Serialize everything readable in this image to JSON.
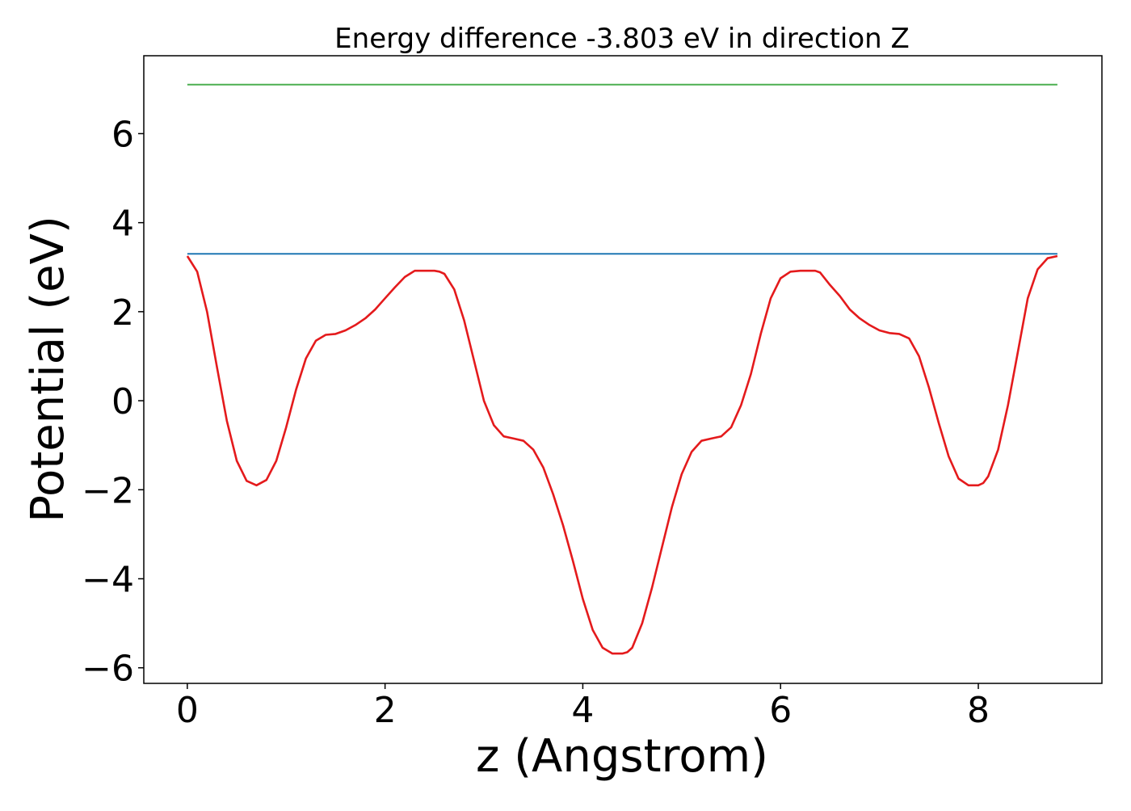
{
  "chart_data": {
    "type": "line",
    "title": "Energy difference -3.803 eV in direction Z",
    "xlabel": "z (Angstrom)",
    "ylabel": "Potential (eV)",
    "xlim": [
      -0.44,
      9.25
    ],
    "ylim": [
      -6.35,
      7.75
    ],
    "xticks": [
      0,
      2,
      4,
      6,
      8
    ],
    "yticks": [
      -6,
      -4,
      -2,
      0,
      2,
      4,
      6
    ],
    "grid": false,
    "legend": "none",
    "series": [
      {
        "color": "#4caf50",
        "x": [
          0,
          8.8
        ],
        "y": [
          7.1,
          7.1
        ]
      },
      {
        "color": "#1f77b4",
        "x": [
          0,
          8.8
        ],
        "y": [
          3.3,
          3.3
        ]
      },
      {
        "color": "#e41a1c",
        "x": [
          0.0,
          0.1,
          0.2,
          0.3,
          0.4,
          0.5,
          0.6,
          0.7,
          0.8,
          0.9,
          1.0,
          1.1,
          1.2,
          1.3,
          1.4,
          1.5,
          1.6,
          1.7,
          1.8,
          1.9,
          2.0,
          2.1,
          2.2,
          2.3,
          2.4,
          2.5,
          2.55,
          2.6,
          2.7,
          2.8,
          2.9,
          3.0,
          3.1,
          3.2,
          3.3,
          3.4,
          3.5,
          3.6,
          3.7,
          3.8,
          3.9,
          4.0,
          4.1,
          4.2,
          4.3,
          4.4,
          4.45,
          4.5,
          4.6,
          4.7,
          4.8,
          4.9,
          5.0,
          5.1,
          5.2,
          5.3,
          5.4,
          5.5,
          5.6,
          5.7,
          5.8,
          5.9,
          6.0,
          6.1,
          6.2,
          6.3,
          6.35,
          6.4,
          6.5,
          6.6,
          6.7,
          6.8,
          6.9,
          7.0,
          7.1,
          7.2,
          7.3,
          7.4,
          7.5,
          7.6,
          7.7,
          7.8,
          7.9,
          8.0,
          8.05,
          8.1,
          8.2,
          8.3,
          8.4,
          8.5,
          8.6,
          8.7,
          8.8
        ],
        "y": [
          3.25,
          2.9,
          2.0,
          0.75,
          -0.45,
          -1.35,
          -1.8,
          -1.9,
          -1.78,
          -1.35,
          -0.6,
          0.25,
          0.95,
          1.35,
          1.48,
          1.5,
          1.58,
          1.7,
          1.85,
          2.05,
          2.3,
          2.55,
          2.78,
          2.92,
          2.92,
          2.92,
          2.9,
          2.85,
          2.5,
          1.8,
          0.9,
          0.0,
          -0.55,
          -0.8,
          -0.85,
          -0.9,
          -1.1,
          -1.5,
          -2.1,
          -2.8,
          -3.6,
          -4.45,
          -5.15,
          -5.55,
          -5.68,
          -5.68,
          -5.65,
          -5.55,
          -5.0,
          -4.2,
          -3.3,
          -2.4,
          -1.65,
          -1.15,
          -0.9,
          -0.85,
          -0.8,
          -0.6,
          -0.1,
          0.6,
          1.5,
          2.3,
          2.75,
          2.9,
          2.92,
          2.92,
          2.92,
          2.88,
          2.6,
          2.35,
          2.05,
          1.85,
          1.7,
          1.58,
          1.52,
          1.5,
          1.4,
          1.0,
          0.3,
          -0.5,
          -1.25,
          -1.75,
          -1.9,
          -1.9,
          -1.85,
          -1.7,
          -1.1,
          -0.1,
          1.1,
          2.3,
          2.95,
          3.2,
          3.25
        ]
      }
    ]
  }
}
